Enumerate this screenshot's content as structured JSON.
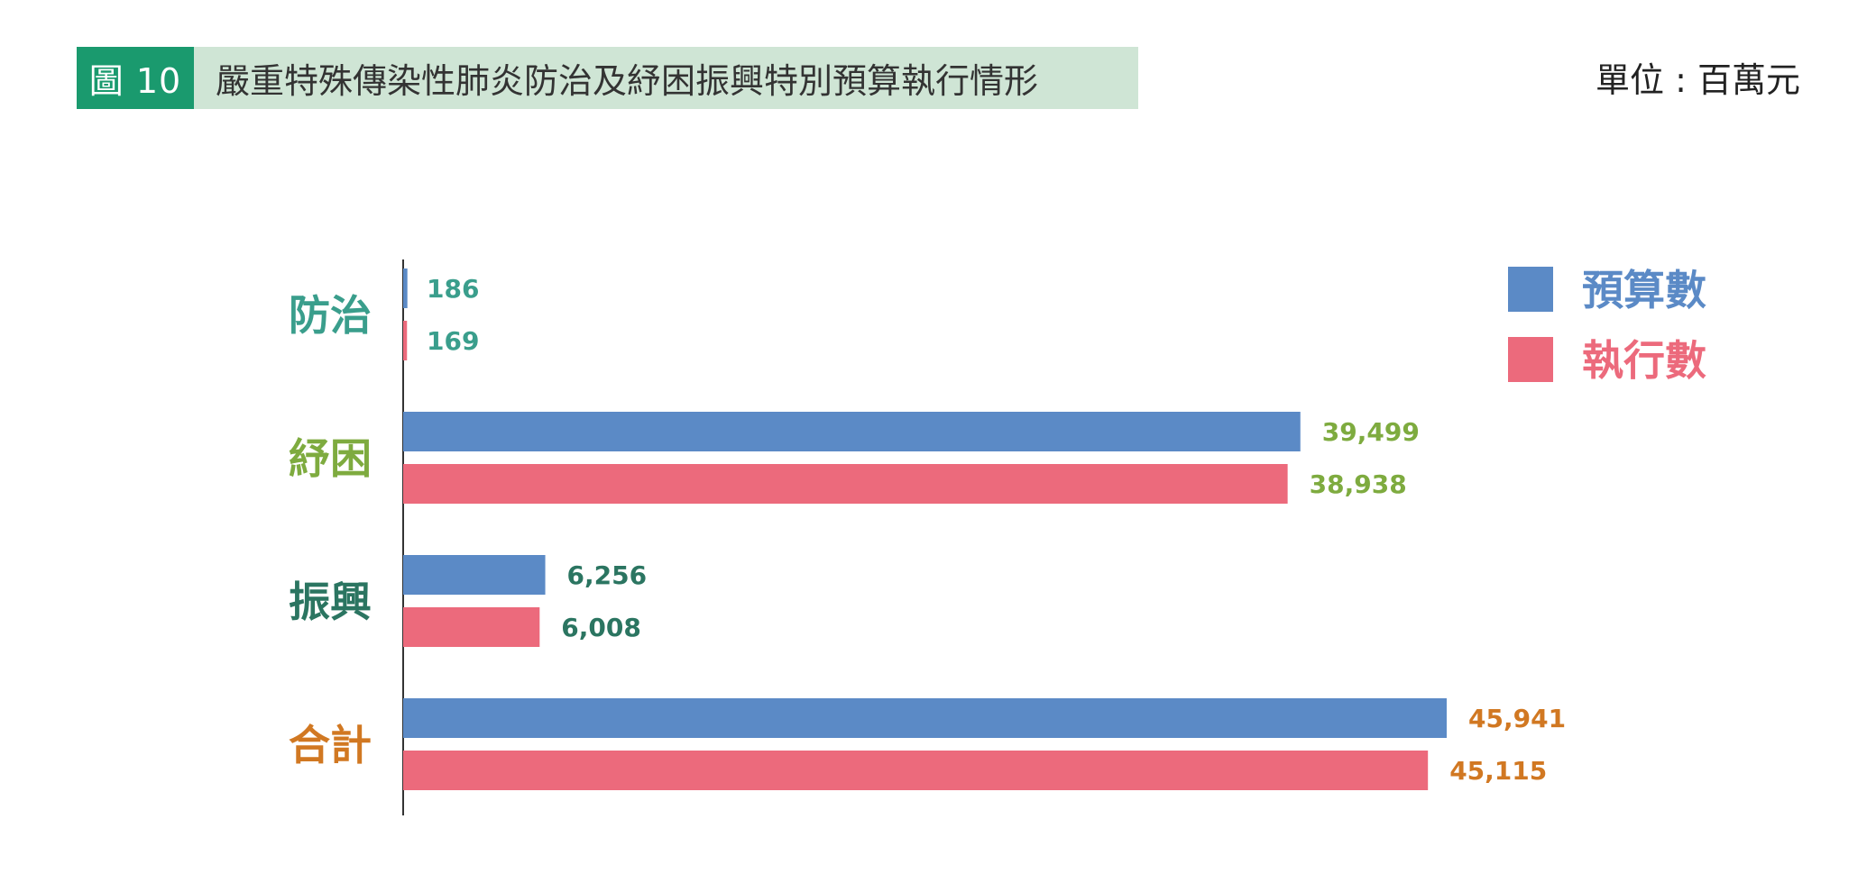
{
  "header": {
    "figure_number": "圖 10",
    "title": "嚴重特殊傳染性肺炎防治及紓困振興特別預算執行情形",
    "unit": "單位 : 百萬元"
  },
  "colors": {
    "figure_number_bg": "#1a9a6e",
    "title_bg": "#cfe5d5",
    "budget": "#5b8ac6",
    "executed": "#ec6a7c"
  },
  "chart_data": {
    "type": "bar",
    "orientation": "horizontal",
    "categories": [
      "防治",
      "紓困",
      "振興",
      "合計"
    ],
    "category_colors": [
      "#3a9e8c",
      "#7eab3f",
      "#2b7561",
      "#d17822"
    ],
    "series": [
      {
        "name": "預算數",
        "color": "#5b8ac6",
        "values": [
          186,
          39499,
          6256,
          45941
        ],
        "labels": [
          "186",
          "39,499",
          "6,256",
          "45,941"
        ]
      },
      {
        "name": "執行數",
        "color": "#ec6a7c",
        "values": [
          169,
          38938,
          6008,
          45115
        ],
        "labels": [
          "169",
          "38,938",
          "6,008",
          "45,115"
        ]
      }
    ],
    "xlim": [
      0,
      48000
    ],
    "legend_position": "top-right",
    "grid": false
  }
}
